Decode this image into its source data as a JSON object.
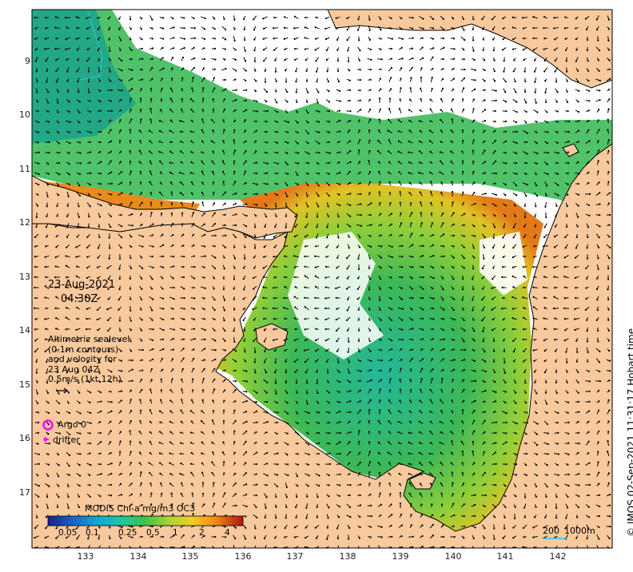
{
  "map": {
    "date": "23-Aug-2021",
    "time": "04:30Z",
    "altimetry_note_lines": [
      "Altimetric sealevel",
      "(0.1m contours)",
      "and velocity for",
      "23 Aug 04Z",
      "0.5m/s (1kt 12h)"
    ],
    "argo_label": "Argo 0",
    "drifter_label": "drifter",
    "colorbar_title": "MODIS Chl-a mg/m3 OC3",
    "colorbar_ticks": [
      "0.05",
      "0.1",
      "0.25",
      "0.5",
      "1",
      "2",
      "4"
    ],
    "scale_bar": {
      "label_left": "200",
      "label_right": "1000m"
    },
    "copyright": "© IMOS 02-Sep-2021 11:31:17 Hobart time",
    "colors": {
      "land": "#f8c99c",
      "ocean_nodata": "#ffffff",
      "argo": "#ff00ff",
      "drifter": "#ff00ff"
    }
  },
  "chart_data": {
    "type": "heatmap",
    "title": "",
    "x_ticks": [
      "133",
      "134",
      "135",
      "136",
      "137",
      "138",
      "139",
      "140",
      "141",
      "142"
    ],
    "y_ticks": [
      "9",
      "10",
      "11",
      "12",
      "13",
      "14",
      "15",
      "16",
      "17"
    ],
    "xlim": [
      132.0,
      143.0
    ],
    "ylim": [
      -17.8,
      -8.0
    ]
  }
}
